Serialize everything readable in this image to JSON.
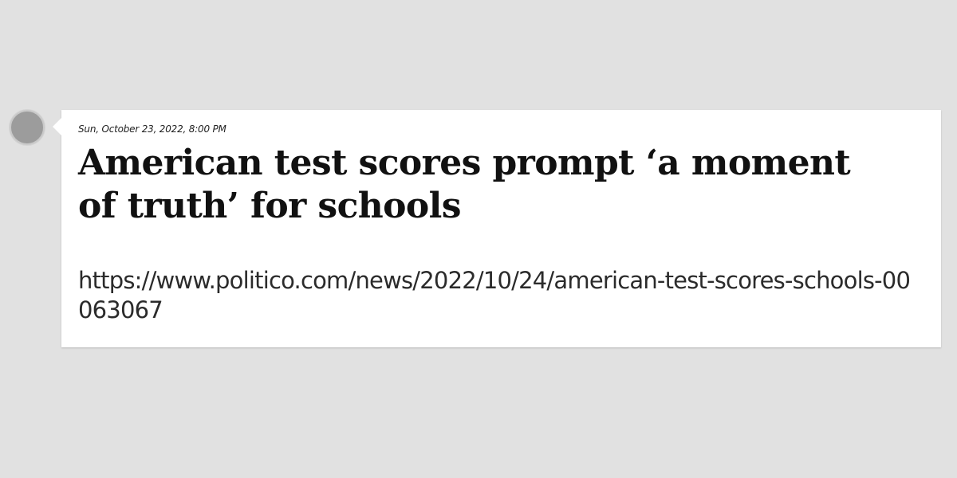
{
  "post": {
    "date": "Sun, October 23, 2022, 8:00 PM",
    "title": "American test scores prompt ‘a moment of truth’ for schools",
    "url": "https://www.politico.com/news/2022/10/24/american-test-scores-schools-00063067"
  },
  "colors": {
    "background": "#e1e1e1",
    "card": "#ffffff",
    "marker": "#9c9c9c"
  }
}
